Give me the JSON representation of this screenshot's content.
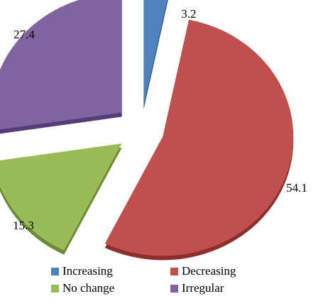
{
  "chart_data": {
    "type": "pie",
    "exploded": true,
    "style": "3d",
    "slices": [
      {
        "label": "Increasing",
        "value": 3.2,
        "color": "#4f81bd",
        "side_color": "#2f5a8f"
      },
      {
        "label": "Decreasing",
        "value": 54.1,
        "color": "#c0504d",
        "side_color": "#8c2f2d"
      },
      {
        "label": "No change",
        "value": 15.3,
        "color": "#9bbb59",
        "side_color": "#6b8a35"
      },
      {
        "label": "Irregular",
        "value": 27.4,
        "color": "#8064a2",
        "side_color": "#553e76"
      }
    ],
    "legend_position": "bottom"
  }
}
